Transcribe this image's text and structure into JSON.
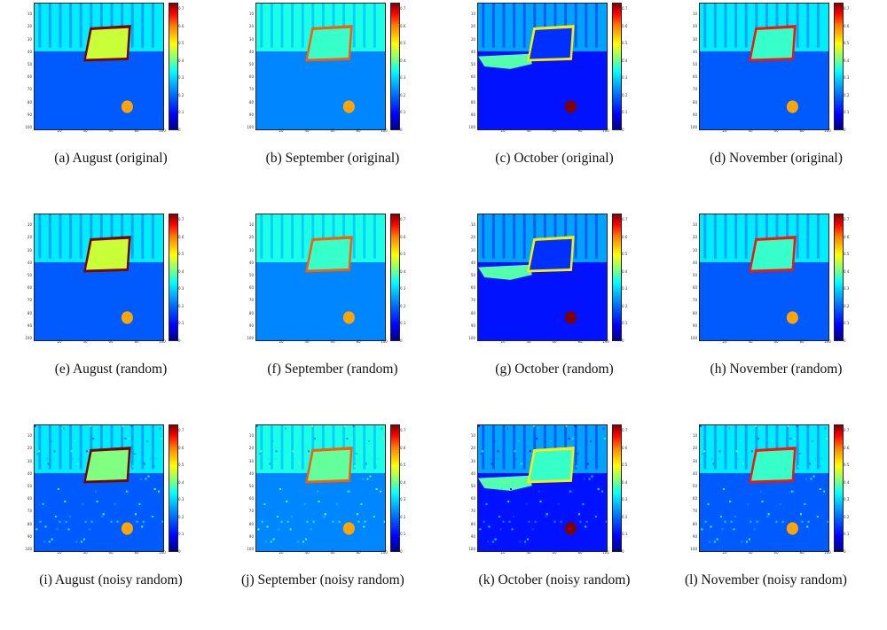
{
  "figure": {
    "colorbar_ticks": [
      "0.7",
      "0.6",
      "0.5",
      "0.4",
      "0.3",
      "0.2",
      "0.1",
      "0"
    ],
    "y_ticks": [
      "10",
      "20",
      "30",
      "40",
      "50",
      "60",
      "70",
      "80",
      "90",
      "100"
    ],
    "x_ticks": [
      "20",
      "40",
      "60",
      "80",
      "100"
    ],
    "colormap": [
      "#00008a",
      "#0000ff",
      "#0080ff",
      "#00ffff",
      "#80ff80",
      "#ffff00",
      "#ff8000",
      "#ff0000",
      "#800000"
    ]
  },
  "panels": [
    {
      "caption": "(a) August (original)"
    },
    {
      "caption": "(b) September (original)"
    },
    {
      "caption": "(c) October (original)"
    },
    {
      "caption": "(d) November (original)"
    },
    {
      "caption": "(e) August (random)"
    },
    {
      "caption": "(f) September (random)"
    },
    {
      "caption": "(g) October (random)"
    },
    {
      "caption": "(h) November (random)"
    },
    {
      "caption": "(i) August (noisy random)"
    },
    {
      "caption": "(j) September (noisy random)"
    },
    {
      "caption": "(k) October (noisy random)"
    },
    {
      "caption": "(l) November (noisy random)"
    }
  ],
  "chart_data": [
    {
      "type": "heatmap",
      "month": "August",
      "variant": "original",
      "zlim": [
        0,
        0.7
      ],
      "xlim": [
        0,
        100
      ],
      "ylim": [
        0,
        100
      ],
      "rect_value": 0.4,
      "rect_border_value": 0.7,
      "blob_value": 0.5,
      "background_value": 0.15
    },
    {
      "type": "heatmap",
      "month": "September",
      "variant": "original",
      "zlim": [
        0,
        0.7
      ],
      "xlim": [
        0,
        100
      ],
      "ylim": [
        0,
        100
      ],
      "rect_value": 0.3,
      "rect_border_value": 0.55,
      "blob_value": 0.5,
      "background_value": 0.18
    },
    {
      "type": "heatmap",
      "month": "October",
      "variant": "original",
      "zlim": [
        0,
        0.7
      ],
      "xlim": [
        0,
        100
      ],
      "ylim": [
        0,
        100
      ],
      "rect_value": 0.12,
      "rect_border_value": 0.45,
      "blob_value": 0.7,
      "background_value": 0.1
    },
    {
      "type": "heatmap",
      "month": "November",
      "variant": "original",
      "zlim": [
        0,
        0.7
      ],
      "xlim": [
        0,
        100
      ],
      "ylim": [
        0,
        100
      ],
      "rect_value": 0.3,
      "rect_border_value": 0.6,
      "blob_value": 0.5,
      "background_value": 0.15
    },
    {
      "type": "heatmap",
      "month": "August",
      "variant": "random",
      "zlim": [
        0,
        0.7
      ],
      "xlim": [
        0,
        100
      ],
      "ylim": [
        0,
        100
      ],
      "rect_value": 0.4,
      "rect_border_value": 0.7,
      "blob_value": 0.5,
      "background_value": 0.15
    },
    {
      "type": "heatmap",
      "month": "September",
      "variant": "random",
      "zlim": [
        0,
        0.7
      ],
      "xlim": [
        0,
        100
      ],
      "ylim": [
        0,
        100
      ],
      "rect_value": 0.3,
      "rect_border_value": 0.55,
      "blob_value": 0.5,
      "background_value": 0.18
    },
    {
      "type": "heatmap",
      "month": "October",
      "variant": "random",
      "zlim": [
        0,
        0.7
      ],
      "xlim": [
        0,
        100
      ],
      "ylim": [
        0,
        100
      ],
      "rect_value": 0.12,
      "rect_border_value": 0.45,
      "blob_value": 0.7,
      "background_value": 0.1
    },
    {
      "type": "heatmap",
      "month": "November",
      "variant": "random",
      "zlim": [
        0,
        0.7
      ],
      "xlim": [
        0,
        100
      ],
      "ylim": [
        0,
        100
      ],
      "rect_value": 0.3,
      "rect_border_value": 0.6,
      "blob_value": 0.5,
      "background_value": 0.15
    },
    {
      "type": "heatmap",
      "month": "August",
      "variant": "noisy random",
      "zlim": [
        0,
        0.7
      ],
      "xlim": [
        0,
        100
      ],
      "ylim": [
        0,
        100
      ],
      "rect_value": 0.35,
      "rect_border_value": 0.7,
      "blob_value": 0.5,
      "background_value": 0.15
    },
    {
      "type": "heatmap",
      "month": "September",
      "variant": "noisy random",
      "zlim": [
        0,
        0.7
      ],
      "xlim": [
        0,
        100
      ],
      "ylim": [
        0,
        100
      ],
      "rect_value": 0.33,
      "rect_border_value": 0.55,
      "blob_value": 0.5,
      "background_value": 0.18
    },
    {
      "type": "heatmap",
      "month": "October",
      "variant": "noisy random",
      "zlim": [
        0,
        0.7
      ],
      "xlim": [
        0,
        100
      ],
      "ylim": [
        0,
        100
      ],
      "rect_value": 0.3,
      "rect_border_value": 0.45,
      "blob_value": 0.7,
      "background_value": 0.1
    },
    {
      "type": "heatmap",
      "month": "November",
      "variant": "noisy random",
      "zlim": [
        0,
        0.7
      ],
      "xlim": [
        0,
        100
      ],
      "ylim": [
        0,
        100
      ],
      "rect_value": 0.3,
      "rect_border_value": 0.6,
      "blob_value": 0.5,
      "background_value": 0.15
    }
  ]
}
